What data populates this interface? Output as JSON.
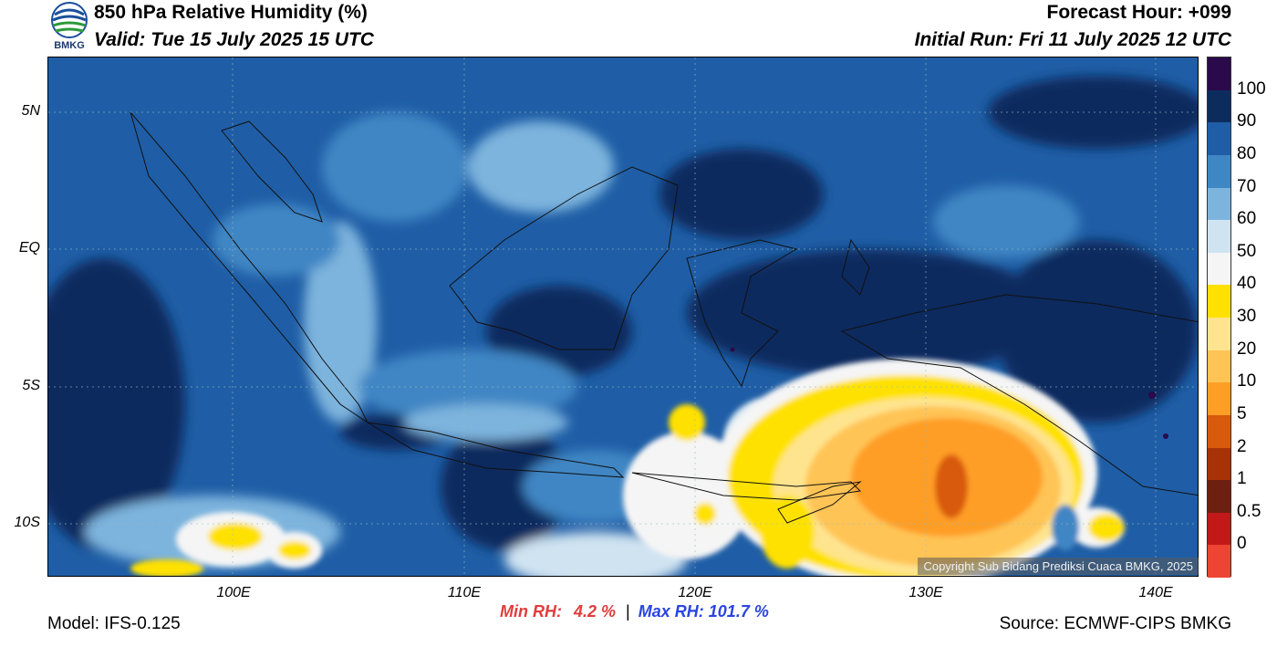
{
  "header": {
    "title": "850 hPa Relative Humidity (%)",
    "valid": "Valid: Tue 15 July 2025 15 UTC",
    "forecast_hour": "Forecast Hour: +099",
    "initial_run": "Initial Run: Fri 11 July 2025 12 UTC"
  },
  "logo": {
    "text": "BMKG",
    "icon": "bmkg-logo-icon"
  },
  "map": {
    "lat_ticks": [
      "5N",
      "EQ",
      "5S",
      "10S"
    ],
    "lon_ticks": [
      "100E",
      "110E",
      "120E",
      "130E",
      "140E"
    ],
    "copyright": "Copyright Sub Bidang Prediksi Cuaca BMKG, 2025"
  },
  "colorbar": {
    "labels": [
      "100",
      "90",
      "80",
      "70",
      "60",
      "50",
      "40",
      "30",
      "20",
      "10",
      "5",
      "2",
      "1",
      "0.5",
      "0"
    ],
    "colors": [
      "#2a0a4a",
      "#0c2c5e",
      "#1f5ea6",
      "#3f86c4",
      "#7db4dd",
      "#cfe3f1",
      "#f5f5f5",
      "#ffe100",
      "#ffe48f",
      "#ffc455",
      "#ff9e25",
      "#d85a0c",
      "#a83208",
      "#6e2010",
      "#c21818",
      "#ee4433"
    ]
  },
  "stats": {
    "min_label": "Min RH:",
    "min_value": "4.2 %",
    "separator": "|",
    "max_label": "Max RH:",
    "max_value": "101.7 %",
    "min_color": "#e23b3b",
    "max_color": "#2a45e0"
  },
  "footer": {
    "model": "Model: IFS-0.125",
    "source": "Source: ECMWF-CIPS BMKG"
  }
}
